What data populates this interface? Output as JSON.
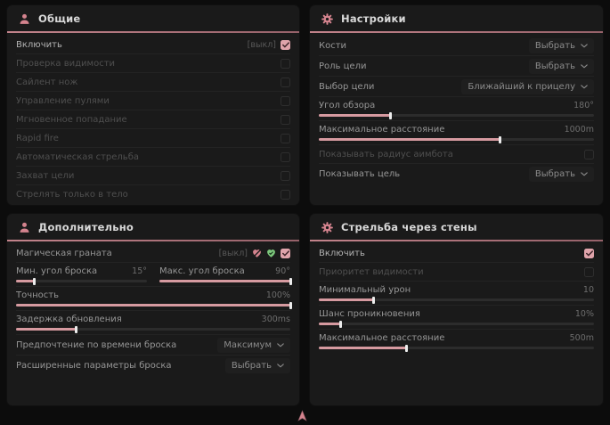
{
  "colors": {
    "accent": "#d69aa0",
    "accent_dark": "#b5747c",
    "green": "#7dc87d",
    "panel_bg": "#1a1a1a",
    "page_bg": "#0c0c0c"
  },
  "panels": {
    "general": {
      "title": "Общие",
      "icon": "person-icon",
      "rows": [
        {
          "type": "checkbox",
          "label": "Включить",
          "suffix": "[выкл]",
          "checked": true,
          "bright": true
        },
        {
          "type": "checkbox",
          "label": "Проверка видимости",
          "checked": false,
          "dim": true
        },
        {
          "type": "checkbox",
          "label": "Сайлент нож",
          "checked": false,
          "dim": true
        },
        {
          "type": "checkbox",
          "label": "Управление пулями",
          "checked": false,
          "dim": true
        },
        {
          "type": "checkbox",
          "label": "Мгновенное попадание",
          "checked": false,
          "dim": true
        },
        {
          "type": "checkbox",
          "label": "Rapid fire",
          "checked": false,
          "dim": true
        },
        {
          "type": "checkbox",
          "label": "Автоматическая стрельба",
          "checked": false,
          "dim": true
        },
        {
          "type": "checkbox",
          "label": "Захват цели",
          "checked": false,
          "dim": true
        },
        {
          "type": "checkbox",
          "label": "Стрелять только в тело",
          "checked": false,
          "dim": true
        }
      ]
    },
    "settings": {
      "title": "Настройки",
      "icon": "gear-icon",
      "rows": [
        {
          "type": "dropdown",
          "label": "Кости",
          "value": "Выбрать"
        },
        {
          "type": "dropdown",
          "label": "Роль цели",
          "value": "Выбрать"
        },
        {
          "type": "dropdown",
          "label": "Выбор цели",
          "value": "Ближайший к прицелу"
        },
        {
          "type": "slider",
          "label": "Угол обзора",
          "value": "180°",
          "fill": 26
        },
        {
          "type": "slider",
          "label": "Максимальное расстояние",
          "value": "1000m",
          "fill": 66
        },
        {
          "type": "checkbox",
          "label": "Показывать радиус аимбота",
          "checked": false,
          "dim": true
        },
        {
          "type": "dropdown",
          "label": "Показывать цель",
          "value": "Выбрать"
        }
      ]
    },
    "additional": {
      "title": "Дополнительно",
      "icon": "person-icon",
      "rows": [
        {
          "type": "checkbox",
          "label": "Магическая граната",
          "suffix": "[выкл]",
          "checked": true,
          "indicators": [
            {
              "icon": "heart-slash-icon",
              "color": "#d4838e"
            },
            {
              "icon": "heart-check-icon",
              "color": "#7dc87d"
            }
          ]
        },
        {
          "type": "slider2",
          "a": {
            "label": "Мин. угол броска",
            "value": "15°",
            "fill": 14
          },
          "b": {
            "label": "Макс. угол броска",
            "value": "90°",
            "fill": 100
          }
        },
        {
          "type": "slider",
          "label": "Точность",
          "value": "100%",
          "fill": 100
        },
        {
          "type": "slider",
          "label": "Задержка обновления",
          "value": "300ms",
          "fill": 22
        },
        {
          "type": "dropdown",
          "label": "Предпочтение по времени броска",
          "value": "Максимум"
        },
        {
          "type": "dropdown",
          "label": "Расширенные параметры броска",
          "value": "Выбрать"
        }
      ]
    },
    "wallbang": {
      "title": "Стрельба через стены",
      "icon": "gear-icon",
      "rows": [
        {
          "type": "checkbox",
          "label": "Включить",
          "checked": true,
          "bright": true
        },
        {
          "type": "checkbox",
          "label": "Приоритет видимости",
          "checked": false,
          "dim": true
        },
        {
          "type": "slider",
          "label": "Минимальный урон",
          "value": "10",
          "fill": 20
        },
        {
          "type": "slider",
          "label": "Шанс проникновения",
          "value": "10%",
          "fill": 8
        },
        {
          "type": "slider",
          "label": "Максимальное расстояние",
          "value": "500m",
          "fill": 32
        }
      ]
    }
  }
}
